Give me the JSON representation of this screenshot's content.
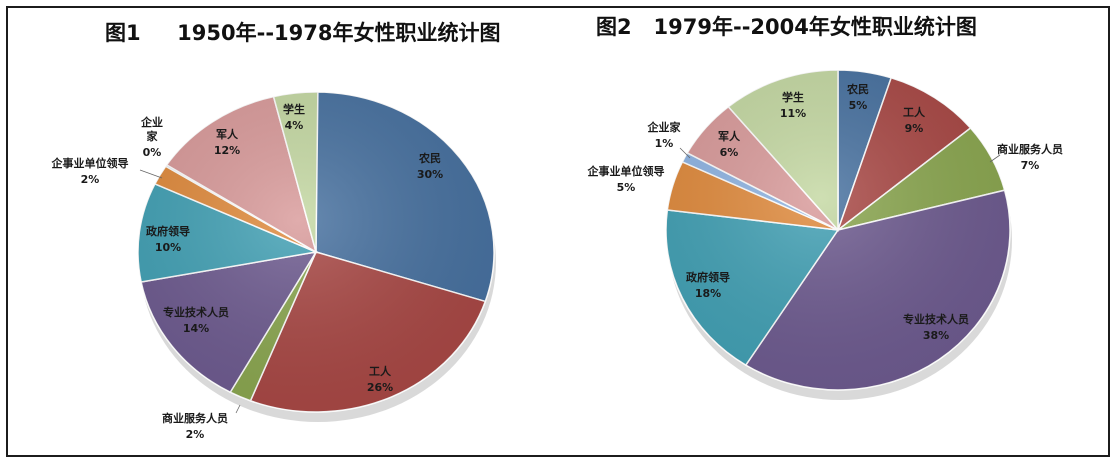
{
  "chart_data": [
    {
      "type": "pie",
      "title": "图1     1950年--1978年女性职业统计图",
      "slices": [
        {
          "name": "农民",
          "value": 30,
          "label": "30%",
          "color": "#46709f"
        },
        {
          "name": "工人",
          "value": 26,
          "label": "26%",
          "color": "#a84744"
        },
        {
          "name": "商业服务人员",
          "value": 2,
          "label": "2%",
          "color": "#8aa64f"
        },
        {
          "name": "专业技术人员",
          "value": 14,
          "label": "14%",
          "color": "#6d5a8f"
        },
        {
          "name": "政府领导",
          "value": 10,
          "label": "10%",
          "color": "#41a0b4"
        },
        {
          "name": "企事业单位领导",
          "value": 2,
          "label": "2%",
          "color": "#e08a3c"
        },
        {
          "name": "企业家",
          "value": 0,
          "label": "0%",
          "color": "#8eb4e3"
        },
        {
          "name": "军人",
          "value": 12,
          "label": "12%",
          "color": "#d99a9a"
        },
        {
          "name": "学生",
          "value": 4,
          "label": "4%",
          "color": "#c4d8a2"
        }
      ]
    },
    {
      "type": "pie",
      "title": "图2   1979年--2004年女性职业统计图",
      "slices": [
        {
          "name": "农民",
          "value": 5,
          "label": "5%",
          "color": "#46709f"
        },
        {
          "name": "工人",
          "value": 9,
          "label": "9%",
          "color": "#a84744"
        },
        {
          "name": "商业服务人员",
          "value": 7,
          "label": "7%",
          "color": "#8aa64f"
        },
        {
          "name": "专业技术人员",
          "value": 38,
          "label": "38%",
          "color": "#6d5a8f"
        },
        {
          "name": "政府领导",
          "value": 18,
          "label": "18%",
          "color": "#41a0b4"
        },
        {
          "name": "企事业单位领导",
          "value": 5,
          "label": "5%",
          "color": "#e08a3c"
        },
        {
          "name": "企业家",
          "value": 1,
          "label": "1%",
          "color": "#8eb4e3"
        },
        {
          "name": "军人",
          "value": 6,
          "label": "6%",
          "color": "#d99a9a"
        },
        {
          "name": "学生",
          "value": 11,
          "label": "11%",
          "color": "#c4d8a2"
        }
      ]
    }
  ]
}
